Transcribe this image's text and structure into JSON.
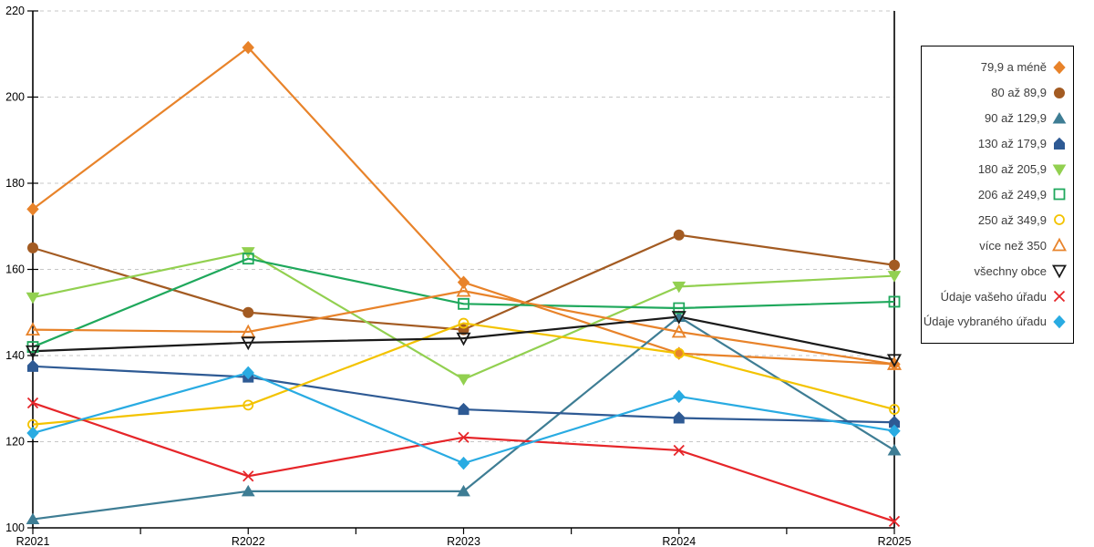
{
  "chart_data": {
    "type": "line",
    "title": "",
    "xlabel": "",
    "ylabel": "",
    "categories": [
      "R2021",
      "R2022",
      "R2023",
      "R2024",
      "R2025"
    ],
    "ylim": [
      100,
      220
    ],
    "ytick_step": 20,
    "yticks": [
      100,
      120,
      140,
      160,
      180,
      200,
      220
    ],
    "grid": "horizontal-dashed",
    "legend_position": "right-box",
    "series": [
      {
        "name": "79,9 a méně",
        "marker": "diamond-filled",
        "color": "#E8832A",
        "values": [
          174,
          211.5,
          157,
          140.5,
          138
        ]
      },
      {
        "name": "80 až 89,9",
        "marker": "circle-filled",
        "color": "#A35B22",
        "values": [
          165,
          150,
          146,
          168,
          161
        ]
      },
      {
        "name": "90 až 129,9",
        "marker": "triangle-up-filled",
        "color": "#3E7D94",
        "values": [
          102,
          108.5,
          108.5,
          149,
          118
        ]
      },
      {
        "name": "130 až 179,9",
        "marker": "pentagon-filled",
        "color": "#2E5A94",
        "values": [
          137.5,
          135,
          127.5,
          125.5,
          124.5
        ]
      },
      {
        "name": "180 až 205,9",
        "marker": "triangle-down-filled",
        "color": "#92D050",
        "values": [
          153.5,
          164,
          134.5,
          156,
          158.5
        ]
      },
      {
        "name": "206 až 249,9",
        "marker": "square-open",
        "color": "#1FA85C",
        "values": [
          142,
          162.5,
          152,
          151,
          152.5
        ]
      },
      {
        "name": "250 až 349,9",
        "marker": "circle-open",
        "color": "#F3C300",
        "values": [
          124,
          128.5,
          147.5,
          140.5,
          127.5
        ]
      },
      {
        "name": "více než 350",
        "marker": "triangle-up-open",
        "color": "#E8832A",
        "values": [
          146,
          145.5,
          155,
          145.5,
          138
        ]
      },
      {
        "name": "všechny obce",
        "marker": "triangle-down-open",
        "color": "#1A1A1A",
        "values": [
          141,
          143,
          144,
          149,
          139
        ]
      },
      {
        "name": "Údaje vašeho úřadu",
        "marker": "x",
        "color": "#E62529",
        "values": [
          129,
          112,
          121,
          118,
          101.5
        ]
      },
      {
        "name": "Údaje vybraného úřadu",
        "marker": "diamond-filled",
        "color": "#29ABE2",
        "values": [
          122,
          136,
          115,
          130.5,
          122.5
        ]
      }
    ]
  }
}
